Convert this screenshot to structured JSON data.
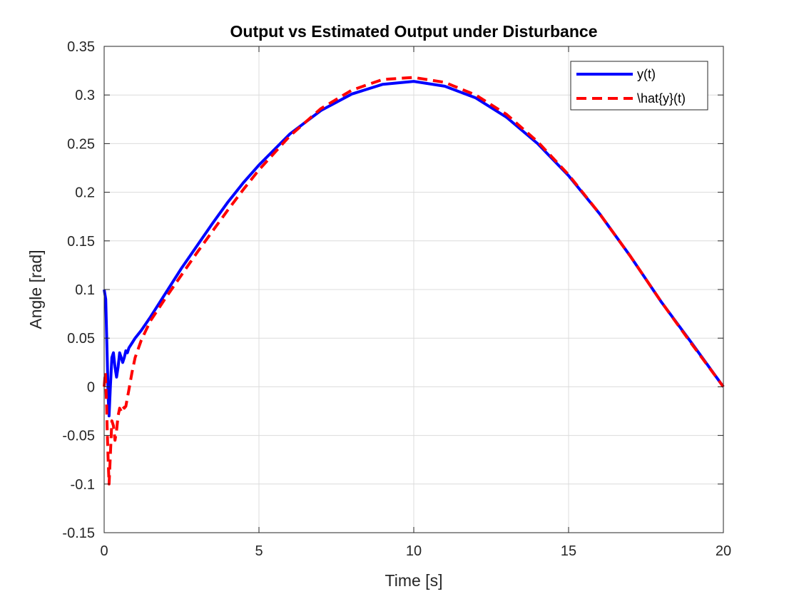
{
  "chart_data": {
    "type": "line",
    "title": "Output vs Estimated Output under Disturbance",
    "xlabel": "Time [s]",
    "ylabel": "Angle [rad]",
    "xlim": [
      0,
      20
    ],
    "ylim": [
      -0.15,
      0.35
    ],
    "xticks": [
      0,
      5,
      10,
      15,
      20
    ],
    "xtick_labels": [
      "0",
      "5",
      "10",
      "15",
      "20"
    ],
    "yticks": [
      -0.15,
      -0.1,
      -0.05,
      0,
      0.05,
      0.1,
      0.15,
      0.2,
      0.25,
      0.3,
      0.35
    ],
    "ytick_labels": [
      "-0.15",
      "-0.1",
      "-0.05",
      "0",
      "0.05",
      "0.1",
      "0.15",
      "0.2",
      "0.25",
      "0.3",
      "0.35"
    ],
    "grid": true,
    "legend_position": "top-right",
    "series": [
      {
        "name": "y(t)",
        "color": "#0000ff",
        "line_style": "solid",
        "x": [
          0,
          0.05,
          0.1,
          0.13,
          0.16,
          0.2,
          0.25,
          0.3,
          0.35,
          0.4,
          0.45,
          0.5,
          0.55,
          0.6,
          0.65,
          0.7,
          0.75,
          0.8,
          0.9,
          1.0,
          1.2,
          1.5,
          2,
          2.5,
          3,
          3.5,
          4,
          4.5,
          5,
          6,
          7,
          8,
          9,
          10,
          11,
          12,
          13,
          14,
          15,
          16,
          17,
          18,
          19,
          20
        ],
        "y": [
          0.1,
          0.09,
          0.03,
          -0.01,
          -0.03,
          0.0,
          0.03,
          0.035,
          0.02,
          0.01,
          0.02,
          0.035,
          0.03,
          0.025,
          0.03,
          0.037,
          0.035,
          0.04,
          0.045,
          0.05,
          0.058,
          0.072,
          0.097,
          0.122,
          0.145,
          0.168,
          0.19,
          0.21,
          0.228,
          0.26,
          0.284,
          0.301,
          0.311,
          0.314,
          0.309,
          0.297,
          0.277,
          0.25,
          0.217,
          0.178,
          0.134,
          0.087,
          0.044,
          0.0
        ]
      },
      {
        "name": "\\hat{y}(t)",
        "color": "#ff0000",
        "line_style": "dashed",
        "x": [
          0,
          0.04,
          0.08,
          0.1,
          0.13,
          0.16,
          0.2,
          0.25,
          0.3,
          0.35,
          0.4,
          0.45,
          0.5,
          0.55,
          0.6,
          0.65,
          0.7,
          0.8,
          0.9,
          1.0,
          1.2,
          1.5,
          2,
          2.5,
          3,
          3.5,
          4,
          4.5,
          5,
          6,
          7,
          8,
          9,
          10,
          11,
          12,
          13,
          14,
          15,
          16,
          17,
          18,
          19,
          20
        ],
        "y": [
          0.0,
          0.015,
          -0.02,
          -0.045,
          -0.075,
          -0.1,
          -0.07,
          -0.035,
          -0.04,
          -0.055,
          -0.045,
          -0.03,
          -0.022,
          -0.025,
          -0.02,
          -0.022,
          -0.02,
          -0.003,
          0.015,
          0.03,
          0.048,
          0.068,
          0.092,
          0.115,
          0.138,
          0.16,
          0.182,
          0.203,
          0.223,
          0.258,
          0.286,
          0.305,
          0.316,
          0.318,
          0.313,
          0.3,
          0.28,
          0.252,
          0.218,
          0.178,
          0.134,
          0.087,
          0.043,
          0.0
        ]
      }
    ]
  }
}
